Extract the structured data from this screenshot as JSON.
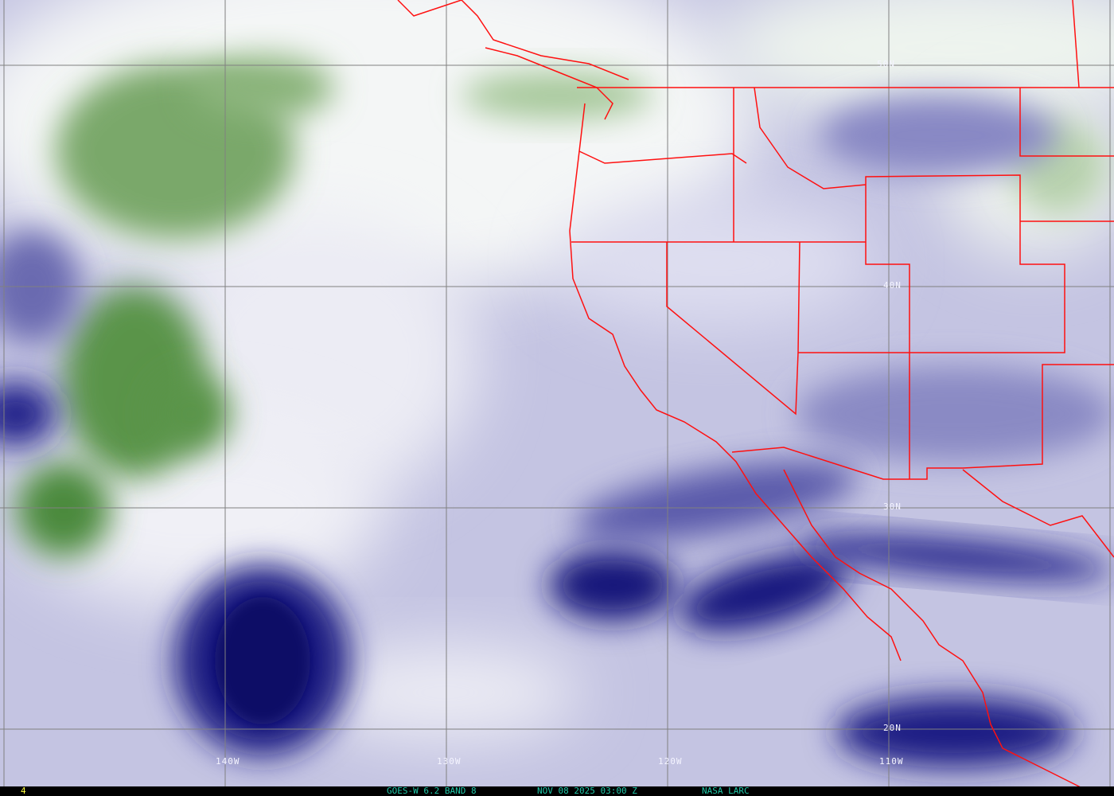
{
  "footer": {
    "frame_number": "4",
    "satellite_band": "GOES-W 6.2 BAND 8",
    "timestamp": "NOV 08 2025 03:00 Z",
    "credit": "NASA LARC"
  },
  "grid": {
    "longitude_labels": [
      "140W",
      "130W",
      "120W",
      "110W"
    ],
    "latitude_labels": [
      "50N",
      "40N",
      "30N",
      "20N"
    ]
  },
  "colors": {
    "boundaries": "#ff1010",
    "gridlines": "#808080",
    "footer_text": "#20c8a8",
    "frame_number": "#ffff40",
    "dry_air": "#14147a",
    "moist_high_cloud": "#3a7a2a"
  }
}
